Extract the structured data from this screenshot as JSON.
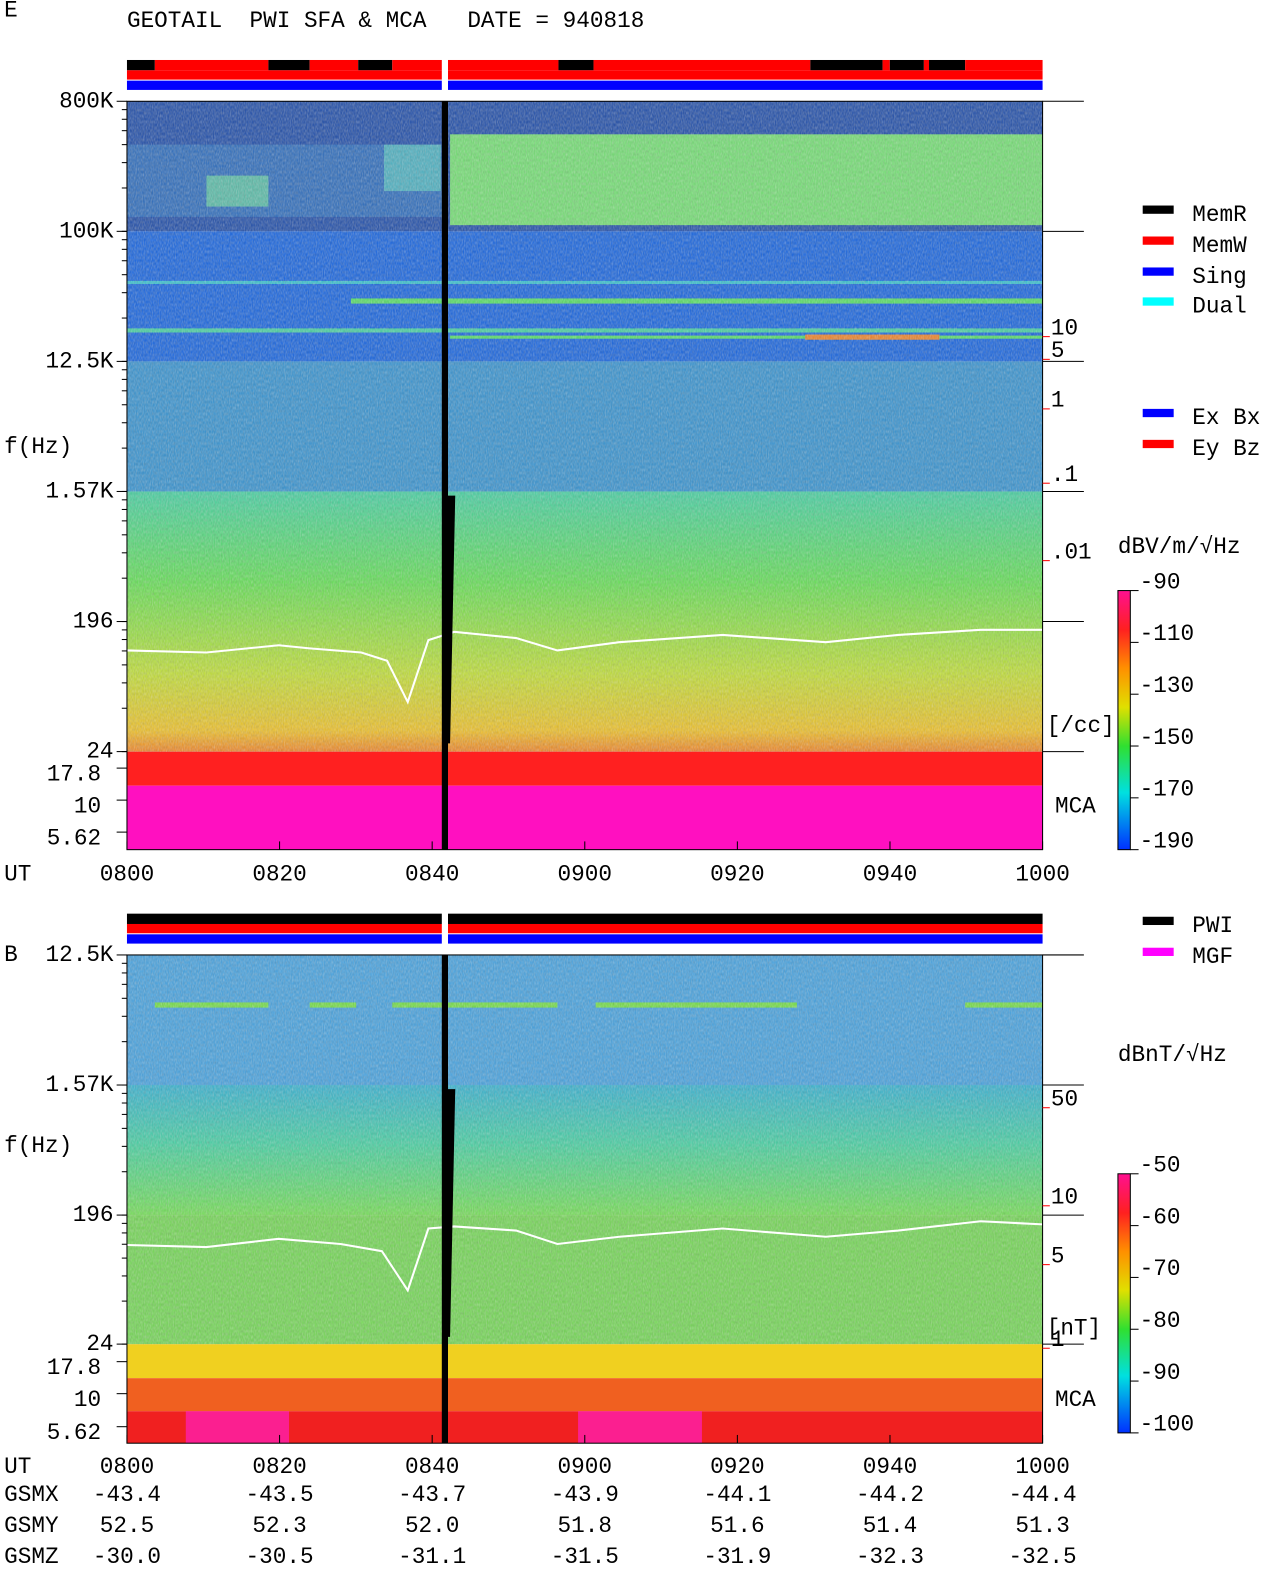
{
  "title": "GEOTAIL  PWI SFA & MCA   DATE = 940818",
  "panels": [
    {
      "label": "E",
      "y_axis_label": "f(Hz)",
      "y_ticks": [
        "800K",
        "100K",
        "12.5K",
        "1.57K",
        "196",
        "24"
      ],
      "mca_ticks": [
        "17.8",
        "10",
        "5.62"
      ],
      "right_ticks": [
        "10",
        "5",
        "1",
        ".1",
        ".01"
      ],
      "right_unit": "[/cc]",
      "mca_label": "MCA",
      "legend": [
        {
          "name": "MemR",
          "color": "#000000"
        },
        {
          "name": "MemW",
          "color": "#ff0000"
        },
        {
          "name": "Sing",
          "color": "#0000ff"
        },
        {
          "name": "Dual",
          "color": "#00ffff"
        }
      ],
      "legend2": [
        {
          "name": "Ex Bx",
          "color": "#0000ff"
        },
        {
          "name": "Ey Bz",
          "color": "#ff0000"
        }
      ],
      "colorbar_unit": "dBV/m/√Hz",
      "colorbar_ticks": [
        "-90",
        "-110",
        "-130",
        "-150",
        "-170",
        "-190"
      ],
      "x_axis_label": "UT",
      "x_ticks": [
        "0800",
        "0820",
        "0840",
        "0900",
        "0920",
        "0940",
        "1000"
      ]
    },
    {
      "label": "B",
      "y_axis_label": "f(Hz)",
      "y_ticks": [
        "12.5K",
        "1.57K",
        "196",
        "24"
      ],
      "mca_ticks": [
        "17.8",
        "10",
        "5.62"
      ],
      "right_ticks": [
        "50",
        "10",
        "5",
        "1"
      ],
      "right_unit": "[nT]",
      "mca_label": "MCA",
      "legend": [
        {
          "name": "PWI",
          "color": "#000000"
        },
        {
          "name": "MGF",
          "color": "#ff00ff"
        }
      ],
      "colorbar_unit": "dBnT/√Hz",
      "colorbar_ticks": [
        "-50",
        "-60",
        "-70",
        "-80",
        "-90",
        "-100"
      ],
      "x_axis_label": "UT",
      "x_ticks": [
        "0800",
        "0820",
        "0840",
        "0900",
        "0920",
        "0940",
        "1000"
      ]
    }
  ],
  "orbit": {
    "rows": [
      {
        "name": "GSMX",
        "values": [
          "-43.4",
          "-43.5",
          "-43.7",
          "-43.9",
          "-44.1",
          "-44.2",
          "-44.4"
        ]
      },
      {
        "name": "GSMY",
        "values": [
          "52.5",
          "52.3",
          "52.0",
          "51.8",
          "51.6",
          "51.4",
          "51.3"
        ]
      },
      {
        "name": "GSMZ",
        "values": [
          "-30.0",
          "-30.5",
          "-31.1",
          "-31.5",
          "-31.9",
          "-32.3",
          "-32.5"
        ]
      }
    ]
  }
}
